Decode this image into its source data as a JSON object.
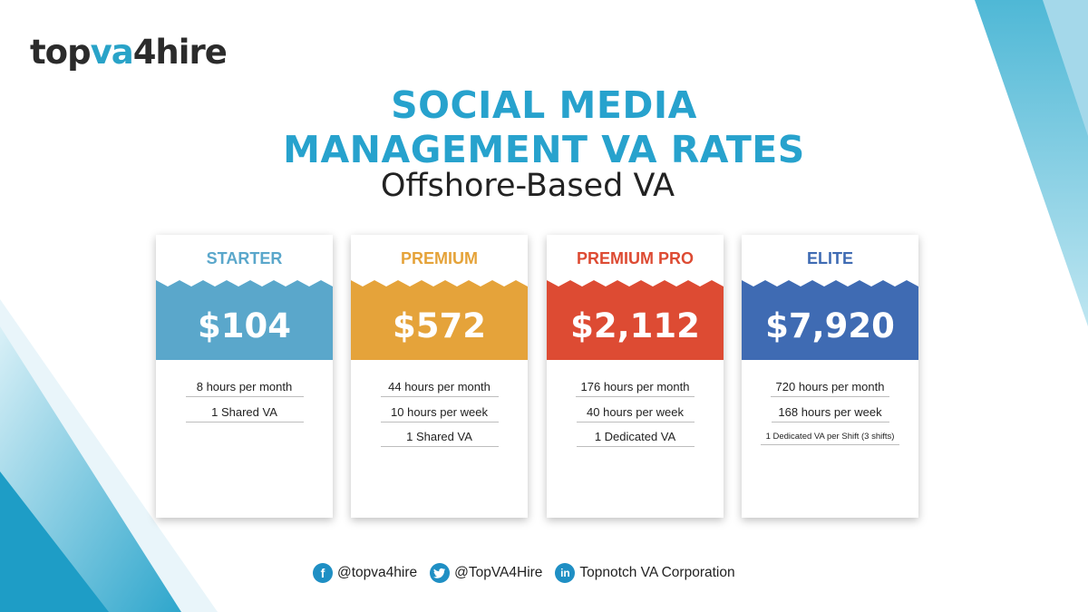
{
  "brand": {
    "logo_part1": "top",
    "logo_part2": "va",
    "logo_part3": "4hire"
  },
  "heading": {
    "line1": "SOCIAL MEDIA",
    "line2": "MANAGEMENT VA RATES",
    "subtitle": "Offshore-Based VA"
  },
  "colors": {
    "title": "#27a2cd",
    "starter": "#5aa7cb",
    "premium": "#e5a33a",
    "premium_pro": "#dd4b33",
    "elite": "#3f6bb3"
  },
  "plans": [
    {
      "name": "STARTER",
      "price": "$104",
      "features": [
        "8 hours per month",
        "1 Shared VA"
      ]
    },
    {
      "name": "PREMIUM",
      "price": "$572",
      "features": [
        "44 hours per month",
        "10 hours per week",
        "1 Shared VA"
      ]
    },
    {
      "name": "PREMIUM PRO",
      "price": "$2,112",
      "features": [
        "176 hours per month",
        "40 hours per week",
        "1 Dedicated VA"
      ]
    },
    {
      "name": "ELITE",
      "price": "$7,920",
      "features": [
        "720 hours per month",
        "168 hours per week",
        "1 Dedicated VA per Shift (3 shifts)"
      ]
    }
  ],
  "social": {
    "facebook": {
      "icon": "facebook-icon",
      "handle": "@topva4hire"
    },
    "twitter": {
      "icon": "twitter-icon",
      "handle": "@TopVA4Hire"
    },
    "linkedin": {
      "icon": "linkedin-icon",
      "handle": "Topnotch VA Corporation"
    }
  }
}
